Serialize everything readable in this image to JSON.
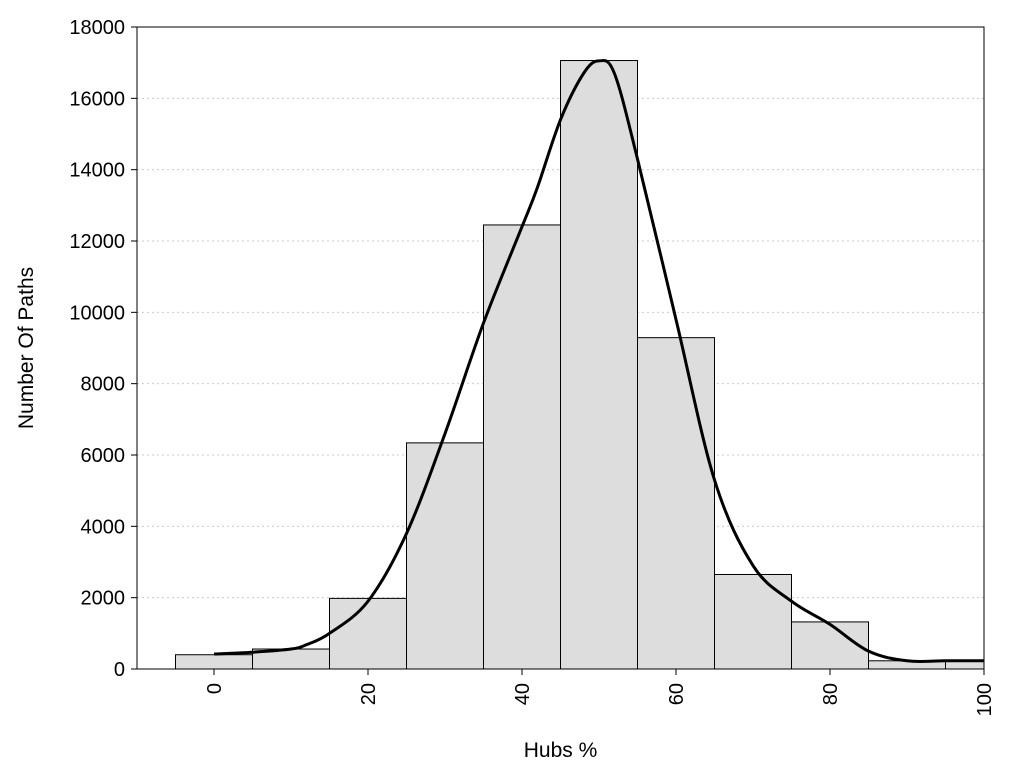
{
  "chart_data": {
    "type": "bar",
    "subtype": "histogram with smoothed density curve",
    "xlabel": "Hubs %",
    "ylabel": "Number Of Paths",
    "xlim": [
      -10,
      100
    ],
    "ylim": [
      0,
      18000
    ],
    "x_ticks": [
      0,
      20,
      40,
      60,
      80,
      100
    ],
    "y_ticks": [
      0,
      2000,
      4000,
      6000,
      8000,
      10000,
      12000,
      14000,
      16000,
      18000
    ],
    "x_tick_rotation": "vertical",
    "grid": "horizontal dotted",
    "bin_width": 10,
    "bins": [
      {
        "center": 0,
        "value": 400
      },
      {
        "center": 10,
        "value": 560
      },
      {
        "center": 20,
        "value": 1980
      },
      {
        "center": 30,
        "value": 6340
      },
      {
        "center": 40,
        "value": 12450
      },
      {
        "center": 50,
        "value": 17060
      },
      {
        "center": 60,
        "value": 9290
      },
      {
        "center": 70,
        "value": 2650
      },
      {
        "center": 80,
        "value": 1320
      },
      {
        "center": 90,
        "value": 230
      },
      {
        "center": 100,
        "value": 230
      }
    ],
    "curve": {
      "x": [
        0,
        5,
        10,
        12,
        15,
        20,
        25,
        30,
        35,
        40,
        42,
        45,
        48,
        50,
        52,
        55,
        60,
        65,
        70,
        75,
        80,
        85,
        90,
        95,
        100
      ],
      "y": [
        420,
        470,
        560,
        680,
        1000,
        1900,
        3800,
        6600,
        9700,
        12400,
        13500,
        15400,
        16700,
        17050,
        16700,
        14300,
        9800,
        5300,
        2900,
        1900,
        1250,
        500,
        230,
        230,
        230
      ]
    },
    "colors": {
      "bar_fill": "#dddddd",
      "bar_stroke": "#000000",
      "curve": "#000000",
      "grid": "#cccccc"
    }
  }
}
